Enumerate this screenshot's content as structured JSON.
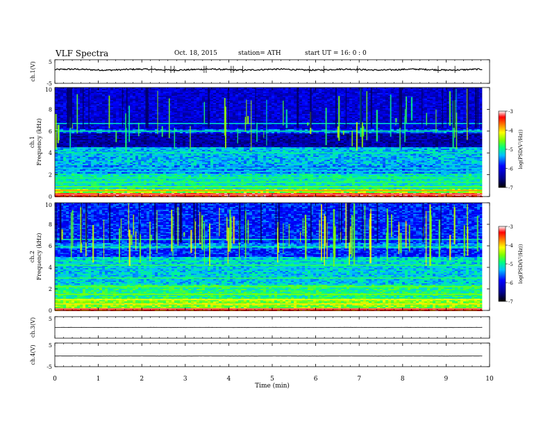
{
  "header": {
    "title": "VLF Spectra",
    "date": "Oct. 18, 2015",
    "station": "station= ATH",
    "start": "start  UT =   16: 0  : 0"
  },
  "chart_data": {
    "type": "heatmap",
    "x": {
      "label": "Time (min)",
      "range": [
        0,
        10
      ],
      "ticks": [
        "0",
        "1",
        "2",
        "3",
        "4",
        "5",
        "6",
        "7",
        "8",
        "9",
        "10"
      ],
      "data_end": 9.83
    },
    "panels": [
      {
        "id": "ch1_wave",
        "kind": "waveform",
        "ylabel": "ch.1(V)",
        "ticks": [
          "5",
          "-5"
        ],
        "ylim": [
          -5,
          5
        ],
        "mean": 0.8,
        "noise": 0.3
      },
      {
        "id": "ch1_spec",
        "kind": "spectrogram",
        "ylabel_lines": [
          "ch.1",
          "Frequency (kHz)"
        ],
        "ylim": [
          0,
          10
        ],
        "ticks": [
          "0",
          "2",
          "4",
          "6",
          "8",
          "10"
        ],
        "colorbar": {
          "label": "log(PSD(V²/Hz))",
          "range": [
            -7,
            -3
          ],
          "ticks": [
            "-3",
            "-4",
            "-5",
            "-6",
            "-7"
          ]
        }
      },
      {
        "id": "ch2_spec",
        "kind": "spectrogram",
        "ylabel_lines": [
          "ch.2",
          "Frequency (kHz)"
        ],
        "ylim": [
          0,
          10
        ],
        "ticks": [
          "0",
          "2",
          "4",
          "6",
          "8",
          "10"
        ],
        "colorbar": {
          "label": "log(PSD(V²/Hz))",
          "range": [
            -7,
            -3
          ],
          "ticks": [
            "-3",
            "-4",
            "-5",
            "-6",
            "-7"
          ]
        }
      },
      {
        "id": "ch3_wave",
        "kind": "waveform",
        "ylabel": "ch.3(V)",
        "ticks": [
          "5"
        ],
        "ylim": [
          -5,
          5
        ],
        "mean": 0.0,
        "noise": 0.05
      },
      {
        "id": "ch4_wave",
        "kind": "waveform",
        "ylabel": "ch.4(V)",
        "ticks": [
          "5",
          "-5"
        ],
        "ylim": [
          -5,
          5
        ],
        "mean": -0.5,
        "noise": 0.02
      }
    ]
  }
}
